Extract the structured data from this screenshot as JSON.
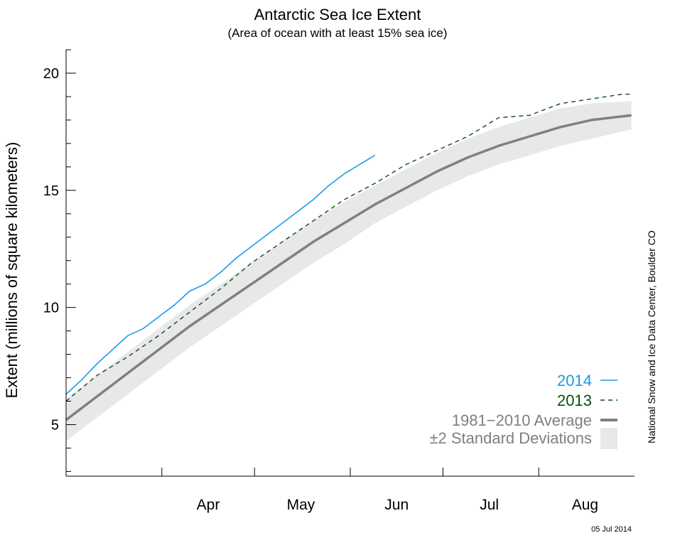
{
  "colors": {
    "s2014": "#1a9be6",
    "s2013": "#0d4f12",
    "average": "#808080",
    "band": "#e8e8e8",
    "legend_avg_text": "#7f7f7f"
  },
  "chart_data": {
    "type": "line",
    "title": "Antarctic Sea Ice Extent",
    "subtitle": "(Area of ocean with at least 15% sea ice)",
    "xlabel": "",
    "ylabel": "Extent (millions of square kilometers)",
    "ylim": [
      2.8,
      21.0
    ],
    "xlim": [
      "2014-03-01",
      "2014-08-31"
    ],
    "grid": false,
    "legend_position": "bottom-right",
    "y_ticks": [
      5,
      10,
      15,
      20
    ],
    "month_labels": [
      "Apr",
      "May",
      "Jun",
      "Jul",
      "Aug"
    ],
    "month_label_dates": [
      "2014-04-16",
      "2014-05-16",
      "2014-06-16",
      "2014-07-16",
      "2014-08-16"
    ],
    "month_boundaries": [
      "2014-04-01",
      "2014-05-01",
      "2014-06-01",
      "2014-07-01",
      "2014-08-01"
    ],
    "credit": "National Snow and Ice Data Center, Boulder CO",
    "date_stamp": "05 Jul 2014",
    "series": [
      {
        "name": "2014",
        "key": "s2014",
        "style": "solid",
        "points": [
          [
            "2014-03-01",
            6.3
          ],
          [
            "2014-03-06",
            6.9
          ],
          [
            "2014-03-11",
            7.6
          ],
          [
            "2014-03-16",
            8.2
          ],
          [
            "2014-03-21",
            8.8
          ],
          [
            "2014-03-26",
            9.1
          ],
          [
            "2014-03-31",
            9.6
          ],
          [
            "2014-04-05",
            10.1
          ],
          [
            "2014-04-10",
            10.7
          ],
          [
            "2014-04-15",
            11.0
          ],
          [
            "2014-04-20",
            11.5
          ],
          [
            "2014-04-25",
            12.1
          ],
          [
            "2014-04-30",
            12.6
          ],
          [
            "2014-05-05",
            13.1
          ],
          [
            "2014-05-10",
            13.6
          ],
          [
            "2014-05-15",
            14.1
          ],
          [
            "2014-05-20",
            14.6
          ],
          [
            "2014-05-25",
            15.2
          ],
          [
            "2014-05-30",
            15.7
          ],
          [
            "2014-06-04",
            16.1
          ],
          [
            "2014-06-09",
            16.5
          ]
        ]
      },
      {
        "name": "2013",
        "key": "s2013",
        "style": "dashed",
        "points": [
          [
            "2014-03-01",
            6.0
          ],
          [
            "2014-03-11",
            7.1
          ],
          [
            "2014-03-21",
            7.9
          ],
          [
            "2014-03-31",
            8.8
          ],
          [
            "2014-04-10",
            9.8
          ],
          [
            "2014-04-20",
            10.8
          ],
          [
            "2014-04-30",
            11.9
          ],
          [
            "2014-05-10",
            12.8
          ],
          [
            "2014-05-20",
            13.7
          ],
          [
            "2014-05-30",
            14.6
          ],
          [
            "2014-06-09",
            15.3
          ],
          [
            "2014-06-19",
            16.1
          ],
          [
            "2014-06-29",
            16.7
          ],
          [
            "2014-07-09",
            17.3
          ],
          [
            "2014-07-19",
            18.1
          ],
          [
            "2014-07-29",
            18.2
          ],
          [
            "2014-08-08",
            18.7
          ],
          [
            "2014-08-18",
            18.9
          ],
          [
            "2014-08-28",
            19.1
          ],
          [
            "2014-08-31",
            19.1
          ]
        ]
      },
      {
        "name": "1981−2010 Average",
        "key": "average",
        "style": "thick",
        "points": [
          [
            "2014-03-01",
            5.2
          ],
          [
            "2014-03-11",
            6.2
          ],
          [
            "2014-03-21",
            7.2
          ],
          [
            "2014-03-31",
            8.2
          ],
          [
            "2014-04-10",
            9.2
          ],
          [
            "2014-04-20",
            10.1
          ],
          [
            "2014-04-30",
            11.0
          ],
          [
            "2014-05-10",
            11.9
          ],
          [
            "2014-05-20",
            12.8
          ],
          [
            "2014-05-30",
            13.6
          ],
          [
            "2014-06-09",
            14.4
          ],
          [
            "2014-06-19",
            15.1
          ],
          [
            "2014-06-29",
            15.8
          ],
          [
            "2014-07-09",
            16.4
          ],
          [
            "2014-07-19",
            16.9
          ],
          [
            "2014-07-29",
            17.3
          ],
          [
            "2014-08-08",
            17.7
          ],
          [
            "2014-08-18",
            18.0
          ],
          [
            "2014-08-31",
            18.2
          ]
        ]
      }
    ],
    "band": {
      "name": "±2 Standard Deviations",
      "upper": [
        [
          "2014-03-01",
          6.1
        ],
        [
          "2014-03-11",
          7.1
        ],
        [
          "2014-03-21",
          8.1
        ],
        [
          "2014-03-31",
          9.1
        ],
        [
          "2014-04-10",
          10.1
        ],
        [
          "2014-04-20",
          11.0
        ],
        [
          "2014-04-30",
          11.9
        ],
        [
          "2014-05-10",
          12.8
        ],
        [
          "2014-05-20",
          13.7
        ],
        [
          "2014-05-30",
          14.5
        ],
        [
          "2014-06-09",
          15.2
        ],
        [
          "2014-06-19",
          15.9
        ],
        [
          "2014-06-29",
          16.6
        ],
        [
          "2014-07-09",
          17.2
        ],
        [
          "2014-07-19",
          17.7
        ],
        [
          "2014-07-29",
          18.1
        ],
        [
          "2014-08-08",
          18.5
        ],
        [
          "2014-08-18",
          18.7
        ],
        [
          "2014-08-31",
          18.8
        ]
      ],
      "lower": [
        [
          "2014-03-01",
          4.3
        ],
        [
          "2014-03-11",
          5.3
        ],
        [
          "2014-03-21",
          6.3
        ],
        [
          "2014-03-31",
          7.3
        ],
        [
          "2014-04-10",
          8.3
        ],
        [
          "2014-04-20",
          9.2
        ],
        [
          "2014-04-30",
          10.1
        ],
        [
          "2014-05-10",
          11.0
        ],
        [
          "2014-05-20",
          11.9
        ],
        [
          "2014-05-30",
          12.7
        ],
        [
          "2014-06-09",
          13.6
        ],
        [
          "2014-06-19",
          14.3
        ],
        [
          "2014-06-29",
          15.0
        ],
        [
          "2014-07-09",
          15.6
        ],
        [
          "2014-07-19",
          16.1
        ],
        [
          "2014-07-29",
          16.5
        ],
        [
          "2014-08-08",
          16.9
        ],
        [
          "2014-08-18",
          17.2
        ],
        [
          "2014-08-31",
          17.6
        ]
      ]
    }
  }
}
